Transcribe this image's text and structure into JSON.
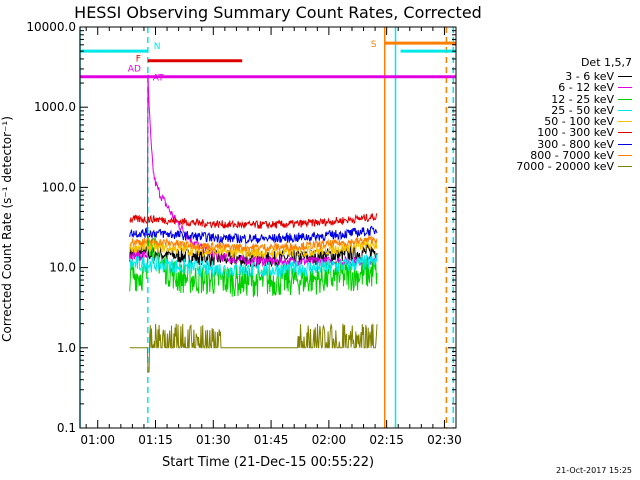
{
  "chart_data": {
    "type": "line",
    "title": "HESSI Observing Summary Count Rates, Corrected",
    "xlabel": "Start Time (21-Dec-15 00:55:22)",
    "ylabel": "Corrected Count Rate (s⁻¹ detector⁻¹)",
    "yscale": "log",
    "ylim": [
      0.1,
      10000
    ],
    "xlim_minutes": [
      55.4,
      153
    ],
    "x_ticks": [
      {
        "m": 60,
        "label": "01:00"
      },
      {
        "m": 75,
        "label": "01:15"
      },
      {
        "m": 90,
        "label": "01:30"
      },
      {
        "m": 105,
        "label": "01:45"
      },
      {
        "m": 120,
        "label": "02:00"
      },
      {
        "m": 135,
        "label": "02:15"
      },
      {
        "m": 150,
        "label": "02:30"
      }
    ],
    "y_ticks": [
      {
        "v": 0.1,
        "label": "0.1"
      },
      {
        "v": 1,
        "label": "1.0"
      },
      {
        "v": 10,
        "label": "10.0"
      },
      {
        "v": 100,
        "label": "100.0"
      },
      {
        "v": 1000,
        "label": "1000.0"
      },
      {
        "v": 10000,
        "label": "10000.0"
      }
    ],
    "legend_title": "Det 1,5,7",
    "series": [
      {
        "name": "3 - 6 keV",
        "color": "#000000",
        "base": 15,
        "noise": 0.1,
        "start": 68.3,
        "end": 132.5
      },
      {
        "name": "6 - 12 keV",
        "color": "#e100e1",
        "base": 12,
        "noise": 0.06,
        "start": 68.3,
        "end": 132.5,
        "peak": 2400
      },
      {
        "name": "12 - 25 keV",
        "color": "#00d000",
        "base": 8,
        "noise": 0.2,
        "start": 68.3,
        "end": 132.5
      },
      {
        "name": "25 - 50 keV",
        "color": "#00e8e8",
        "base": 11,
        "noise": 0.1,
        "start": 68.3,
        "end": 132.5
      },
      {
        "name": "50 - 100 keV",
        "color": "#f4c000",
        "base": 18,
        "noise": 0.07,
        "start": 68.3,
        "end": 132.5
      },
      {
        "name": "100 - 300 keV",
        "color": "#e00000",
        "base": 40,
        "noise": 0.05,
        "start": 68.3,
        "end": 132.5
      },
      {
        "name": "300 - 800 keV",
        "color": "#0000e0",
        "base": 27,
        "noise": 0.06,
        "start": 68.3,
        "end": 132.5
      },
      {
        "name": "800 - 7000 keV",
        "color": "#ff7f00",
        "base": 21,
        "noise": 0.05,
        "start": 68.3,
        "end": 132.5
      },
      {
        "name": "7000 - 20000 keV",
        "color": "#808000",
        "base": 1,
        "noise": 0,
        "start": 68.3,
        "end": 132.5
      }
    ],
    "flag_bars": [
      {
        "label": "N",
        "color": "#00e8e8",
        "start": 55.4,
        "end": 73.0,
        "value": 5000
      },
      {
        "label": "",
        "color": "#00e8e8",
        "start": 138.6,
        "end": 153.0,
        "value": 5000
      },
      {
        "label": "F",
        "color": "#e00000",
        "start": 73.0,
        "end": 97.5,
        "value": 3800
      },
      {
        "label": "AD",
        "color": "#e100e1",
        "start": 55.4,
        "end": 153.0,
        "value": 2400
      },
      {
        "label": "S",
        "color": "#ff7f00",
        "start": 134.5,
        "end": 153.0,
        "value": 6300
      }
    ],
    "vertical_markers": [
      {
        "color": "#00e8e8",
        "m": 55.4,
        "style": "solid"
      },
      {
        "color": "#00e8e8",
        "m": 73.0,
        "style": "dashed"
      },
      {
        "color": "#ff7f00",
        "m": 134.5,
        "style": "solid"
      },
      {
        "color": "#00e8e8",
        "m": 137.3,
        "style": "solid"
      },
      {
        "color": "#ff7f00",
        "m": 150.5,
        "style": "dashed"
      },
      {
        "color": "#00e8e8",
        "m": 152.3,
        "style": "dashed"
      }
    ],
    "flag_labels": [
      {
        "text": "N",
        "color": "#00e8e8"
      },
      {
        "text": "F",
        "color": "#e00000"
      },
      {
        "text": "AD",
        "color": "#e100e1"
      },
      {
        "text": "AT",
        "color": "#e100e1"
      },
      {
        "text": "S",
        "color": "#ff7f00"
      }
    ]
  },
  "footer": {
    "date_stamp": "21-Oct-2017 15:25"
  }
}
